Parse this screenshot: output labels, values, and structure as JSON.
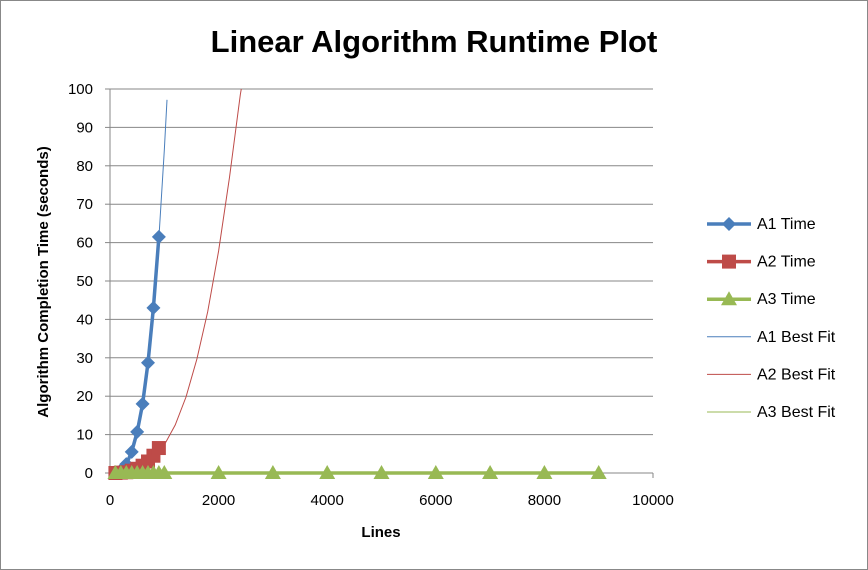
{
  "chart_data": {
    "type": "scatter",
    "title": "Linear Algorithm Runtime Plot",
    "xlabel": "Lines",
    "ylabel": "Algorithm Completion Time (seconds)",
    "xlim": [
      0,
      10000
    ],
    "ylim": [
      0,
      100
    ],
    "x_ticks": [
      0,
      2000,
      4000,
      6000,
      8000,
      10000
    ],
    "y_ticks": [
      0,
      10,
      20,
      30,
      40,
      50,
      60,
      70,
      80,
      90,
      100
    ],
    "grid": "horizontal",
    "legend_position": "right",
    "series": [
      {
        "name": "A1 Time",
        "color": "#4a7ebb",
        "marker": "diamond",
        "style": "line-markers",
        "x": [
          100,
          200,
          300,
          400,
          500,
          600,
          700,
          800,
          900
        ],
        "y": [
          0.1,
          0.7,
          2.3,
          5.5,
          10.7,
          18.0,
          28.7,
          43.0,
          61.5
        ]
      },
      {
        "name": "A2 Time",
        "color": "#be4b48",
        "marker": "square",
        "style": "line-markers",
        "x": [
          100,
          200,
          300,
          400,
          500,
          600,
          700,
          800,
          900
        ],
        "y": [
          0.0,
          0.1,
          0.2,
          0.6,
          1.1,
          1.9,
          3.0,
          4.5,
          6.5
        ]
      },
      {
        "name": "A3 Time",
        "color": "#98b954",
        "marker": "triangle",
        "style": "line-markers",
        "x": [
          100,
          200,
          300,
          400,
          500,
          600,
          700,
          800,
          900,
          1000,
          2000,
          3000,
          4000,
          5000,
          6000,
          7000,
          8000,
          9000
        ],
        "y": [
          0,
          0,
          0,
          0,
          0,
          0,
          0,
          0,
          0,
          0,
          0,
          0,
          0,
          0,
          0,
          0,
          0,
          0
        ]
      },
      {
        "name": "A1 Best Fit",
        "color": "#4a7ebb",
        "style": "line",
        "x": [
          0,
          100,
          200,
          300,
          400,
          500,
          600,
          700,
          800,
          900,
          1000,
          1050
        ],
        "y": [
          0,
          0.1,
          0.7,
          2.3,
          5.4,
          10.5,
          18.1,
          28.8,
          43.0,
          61.2,
          84.0,
          97.2
        ]
      },
      {
        "name": "A2 Best Fit",
        "color": "#be4b48",
        "style": "line",
        "x": [
          0,
          200,
          400,
          600,
          800,
          1000,
          1200,
          1400,
          1600,
          1800,
          2000,
          2200,
          2400,
          2430
        ],
        "y": [
          0,
          0.1,
          0.6,
          1.9,
          4.5,
          7.3,
          12.5,
          19.8,
          29.7,
          42.0,
          57.8,
          77.0,
          98.5,
          101
        ]
      },
      {
        "name": "A3 Best Fit",
        "color": "#98b954",
        "style": "line",
        "x": [
          0,
          9000
        ],
        "y": [
          0,
          0
        ]
      }
    ]
  }
}
